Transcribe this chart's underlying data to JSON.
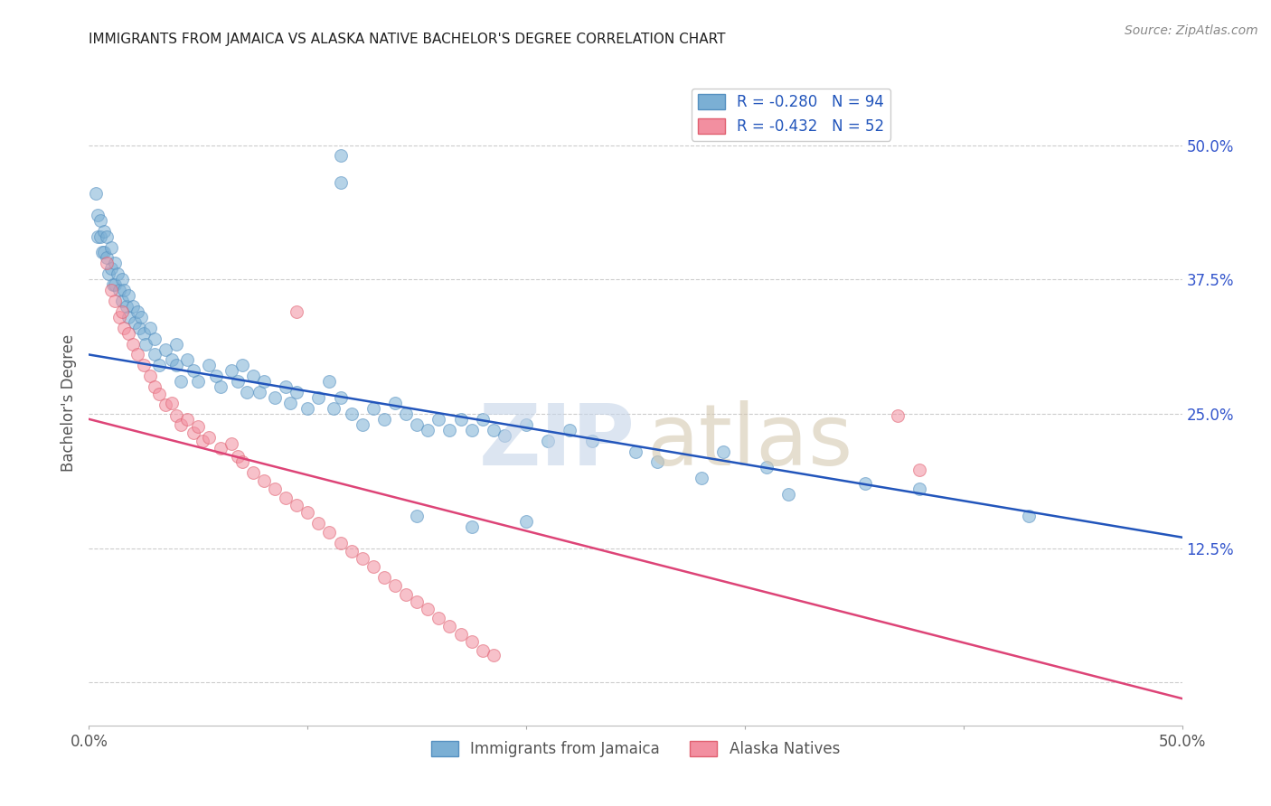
{
  "title": "IMMIGRANTS FROM JAMAICA VS ALASKA NATIVE BACHELOR'S DEGREE CORRELATION CHART",
  "source": "Source: ZipAtlas.com",
  "ylabel": "Bachelor's Degree",
  "ytick_values": [
    0.5,
    0.375,
    0.25,
    0.125,
    0.0
  ],
  "ytick_labels": [
    "50.0%",
    "37.5%",
    "25.0%",
    "12.5%",
    ""
  ],
  "xlim": [
    0.0,
    0.5
  ],
  "ylim": [
    -0.04,
    0.56
  ],
  "blue_line": {
    "x0": 0.0,
    "y0": 0.305,
    "x1": 0.5,
    "y1": 0.135
  },
  "pink_line": {
    "x0": 0.0,
    "y0": 0.245,
    "x1": 0.5,
    "y1": -0.015
  },
  "blue_scatter": [
    [
      0.003,
      0.455
    ],
    [
      0.004,
      0.435
    ],
    [
      0.004,
      0.415
    ],
    [
      0.005,
      0.43
    ],
    [
      0.005,
      0.415
    ],
    [
      0.006,
      0.4
    ],
    [
      0.007,
      0.42
    ],
    [
      0.007,
      0.4
    ],
    [
      0.008,
      0.415
    ],
    [
      0.008,
      0.395
    ],
    [
      0.009,
      0.38
    ],
    [
      0.01,
      0.405
    ],
    [
      0.01,
      0.385
    ],
    [
      0.011,
      0.37
    ],
    [
      0.012,
      0.39
    ],
    [
      0.012,
      0.37
    ],
    [
      0.013,
      0.38
    ],
    [
      0.014,
      0.365
    ],
    [
      0.015,
      0.375
    ],
    [
      0.015,
      0.355
    ],
    [
      0.016,
      0.365
    ],
    [
      0.017,
      0.35
    ],
    [
      0.018,
      0.36
    ],
    [
      0.018,
      0.34
    ],
    [
      0.02,
      0.35
    ],
    [
      0.021,
      0.335
    ],
    [
      0.022,
      0.345
    ],
    [
      0.023,
      0.33
    ],
    [
      0.024,
      0.34
    ],
    [
      0.025,
      0.325
    ],
    [
      0.026,
      0.315
    ],
    [
      0.028,
      0.33
    ],
    [
      0.03,
      0.32
    ],
    [
      0.03,
      0.305
    ],
    [
      0.032,
      0.295
    ],
    [
      0.035,
      0.31
    ],
    [
      0.038,
      0.3
    ],
    [
      0.04,
      0.315
    ],
    [
      0.04,
      0.295
    ],
    [
      0.042,
      0.28
    ],
    [
      0.045,
      0.3
    ],
    [
      0.048,
      0.29
    ],
    [
      0.05,
      0.28
    ],
    [
      0.055,
      0.295
    ],
    [
      0.058,
      0.285
    ],
    [
      0.06,
      0.275
    ],
    [
      0.065,
      0.29
    ],
    [
      0.068,
      0.28
    ],
    [
      0.07,
      0.295
    ],
    [
      0.072,
      0.27
    ],
    [
      0.075,
      0.285
    ],
    [
      0.078,
      0.27
    ],
    [
      0.08,
      0.28
    ],
    [
      0.085,
      0.265
    ],
    [
      0.09,
      0.275
    ],
    [
      0.092,
      0.26
    ],
    [
      0.095,
      0.27
    ],
    [
      0.1,
      0.255
    ],
    [
      0.105,
      0.265
    ],
    [
      0.11,
      0.28
    ],
    [
      0.112,
      0.255
    ],
    [
      0.115,
      0.265
    ],
    [
      0.12,
      0.25
    ],
    [
      0.125,
      0.24
    ],
    [
      0.13,
      0.255
    ],
    [
      0.135,
      0.245
    ],
    [
      0.14,
      0.26
    ],
    [
      0.145,
      0.25
    ],
    [
      0.15,
      0.24
    ],
    [
      0.155,
      0.235
    ],
    [
      0.16,
      0.245
    ],
    [
      0.165,
      0.235
    ],
    [
      0.17,
      0.245
    ],
    [
      0.175,
      0.235
    ],
    [
      0.18,
      0.245
    ],
    [
      0.185,
      0.235
    ],
    [
      0.19,
      0.23
    ],
    [
      0.2,
      0.24
    ],
    [
      0.21,
      0.225
    ],
    [
      0.22,
      0.235
    ],
    [
      0.23,
      0.225
    ],
    [
      0.115,
      0.49
    ],
    [
      0.115,
      0.465
    ],
    [
      0.25,
      0.215
    ],
    [
      0.26,
      0.205
    ],
    [
      0.29,
      0.215
    ],
    [
      0.31,
      0.2
    ],
    [
      0.355,
      0.185
    ],
    [
      0.38,
      0.18
    ],
    [
      0.15,
      0.155
    ],
    [
      0.175,
      0.145
    ],
    [
      0.2,
      0.15
    ],
    [
      0.43,
      0.155
    ],
    [
      0.28,
      0.19
    ],
    [
      0.32,
      0.175
    ]
  ],
  "pink_scatter": [
    [
      0.008,
      0.39
    ],
    [
      0.01,
      0.365
    ],
    [
      0.012,
      0.355
    ],
    [
      0.014,
      0.34
    ],
    [
      0.015,
      0.345
    ],
    [
      0.016,
      0.33
    ],
    [
      0.018,
      0.325
    ],
    [
      0.02,
      0.315
    ],
    [
      0.022,
      0.305
    ],
    [
      0.025,
      0.295
    ],
    [
      0.028,
      0.285
    ],
    [
      0.03,
      0.275
    ],
    [
      0.032,
      0.268
    ],
    [
      0.035,
      0.258
    ],
    [
      0.038,
      0.26
    ],
    [
      0.04,
      0.248
    ],
    [
      0.042,
      0.24
    ],
    [
      0.045,
      0.245
    ],
    [
      0.048,
      0.232
    ],
    [
      0.05,
      0.238
    ],
    [
      0.052,
      0.225
    ],
    [
      0.055,
      0.228
    ],
    [
      0.06,
      0.218
    ],
    [
      0.065,
      0.222
    ],
    [
      0.068,
      0.21
    ],
    [
      0.07,
      0.205
    ],
    [
      0.075,
      0.195
    ],
    [
      0.08,
      0.188
    ],
    [
      0.085,
      0.18
    ],
    [
      0.09,
      0.172
    ],
    [
      0.095,
      0.165
    ],
    [
      0.1,
      0.158
    ],
    [
      0.105,
      0.148
    ],
    [
      0.11,
      0.14
    ],
    [
      0.115,
      0.13
    ],
    [
      0.12,
      0.122
    ],
    [
      0.125,
      0.115
    ],
    [
      0.13,
      0.108
    ],
    [
      0.135,
      0.098
    ],
    [
      0.14,
      0.09
    ],
    [
      0.145,
      0.082
    ],
    [
      0.15,
      0.075
    ],
    [
      0.155,
      0.068
    ],
    [
      0.16,
      0.06
    ],
    [
      0.165,
      0.052
    ],
    [
      0.17,
      0.045
    ],
    [
      0.175,
      0.038
    ],
    [
      0.18,
      0.03
    ],
    [
      0.185,
      0.025
    ],
    [
      0.37,
      0.248
    ],
    [
      0.38,
      0.198
    ],
    [
      0.095,
      0.345
    ]
  ],
  "blue_color": "#7bafd4",
  "pink_color": "#f28fa0",
  "blue_edge_color": "#5590c0",
  "pink_edge_color": "#e06070",
  "blue_line_color": "#2255bb",
  "pink_line_color": "#dd4477",
  "background_color": "#ffffff",
  "grid_color": "#cccccc",
  "title_color": "#222222",
  "label_color": "#555555",
  "right_tick_color": "#3355cc"
}
